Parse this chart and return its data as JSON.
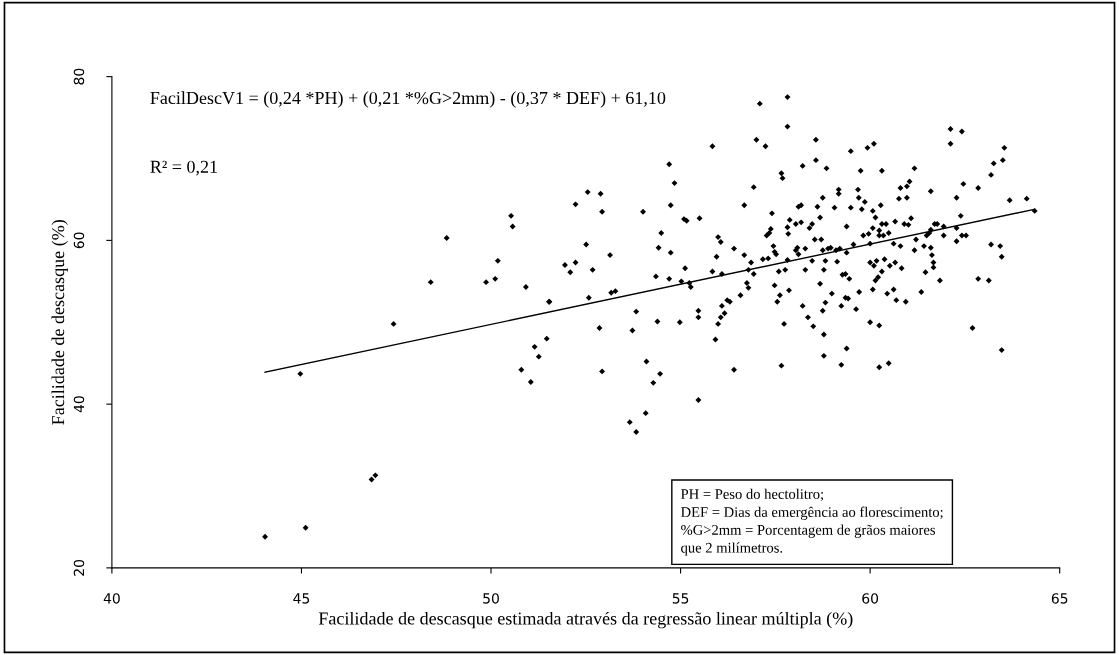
{
  "chart_data": {
    "type": "scatter",
    "xlabel": "Facilidade de descasque estimada através da regressão linear múltipla (%)",
    "ylabel": "Facilidade de descasque (%)",
    "annotations": [
      "FacilDescV1 = (0,24 *PH) + (0,21 *%G>2mm) - (0,37 * DEF) + 61,10",
      "R² = 0,21",
      "PH = Peso do hectolitro;\nDEF = Dias da emergência ao florescimento;\n%G>2mm = Porcentagem de grãos maiores\nque 2 milímetros."
    ],
    "xlim": [
      40,
      65
    ],
    "xticks": [
      40,
      45,
      50,
      55,
      60,
      65
    ],
    "ylim": [
      20,
      80
    ],
    "yticks": [
      20,
      40,
      60,
      80
    ],
    "grid": false,
    "legend": false,
    "series": [
      {
        "marker": "diamond",
        "color": "#000000",
        "x": [
          44.04,
          45.11,
          46.85,
          46.95,
          44.97,
          47.43,
          48.41,
          48.83,
          49.87,
          50.11,
          50.18,
          50.53,
          50.57,
          50.92,
          50.8,
          51.05,
          51.15,
          51.26,
          51.47,
          51.53,
          51.54,
          51.95,
          52.09,
          52.23,
          52.23,
          52.51,
          52.55,
          52.58,
          52.68,
          52.89,
          52.93,
          52.86,
          52.93,
          53.14,
          53.17,
          53.28,
          53.66,
          53.83,
          54.08,
          53.73,
          53.83,
          54.01,
          54.1,
          54.28,
          54.46,
          54.35,
          54.39,
          54.42,
          54.49,
          54.7,
          54.84,
          54.74,
          54.74,
          54.7,
          54.98,
          55.02,
          55.09,
          55.16,
          55.12,
          55.23,
          55.27,
          55.47,
          55.47,
          55.47,
          55.5,
          55.84,
          55.84,
          55.92,
          55.95,
          55.99,
          56.06,
          56.09,
          55.99,
          56.06,
          56.09,
          56.16,
          56.23,
          56.3,
          56.41,
          56.41,
          56.58,
          56.68,
          56.68,
          56.75,
          56.79,
          56.79,
          56.86,
          56.93,
          56.93,
          57.0,
          57.09,
          57.17,
          57.24,
          57.27,
          57.31,
          57.34,
          57.38,
          57.41,
          57.45,
          57.48,
          57.52,
          57.48,
          57.55,
          57.59,
          57.62,
          57.66,
          57.69,
          57.66,
          57.73,
          57.76,
          57.82,
          57.82,
          57.82,
          57.82,
          57.86,
          57.84,
          57.88,
          58.04,
          58.18,
          58.04,
          58.08,
          58.29,
          58.11,
          58.11,
          58.18,
          58.22,
          58.29,
          58.22,
          58.36,
          58.4,
          58.47,
          58.47,
          58.5,
          58.54,
          58.57,
          58.57,
          58.61,
          58.68,
          58.68,
          58.71,
          58.75,
          58.75,
          58.75,
          58.78,
          58.78,
          58.78,
          58.82,
          58.82,
          58.85,
          58.89,
          58.96,
          58.99,
          59.06,
          59.1,
          59.13,
          59.17,
          59.17,
          59.2,
          59.24,
          59.24,
          59.27,
          59.35,
          59.35,
          59.38,
          59.38,
          59.38,
          59.42,
          59.45,
          59.49,
          59.49,
          59.56,
          59.63,
          59.68,
          59.7,
          59.71,
          59.75,
          59.78,
          59.82,
          59.86,
          59.93,
          59.96,
          60.0,
          60.0,
          60.0,
          60.07,
          60.07,
          60.07,
          60.1,
          60.1,
          60.14,
          60.14,
          60.17,
          60.21,
          60.24,
          60.24,
          60.24,
          60.24,
          60.28,
          60.31,
          60.31,
          60.31,
          60.35,
          60.38,
          60.42,
          60.45,
          60.49,
          60.49,
          60.52,
          60.62,
          60.62,
          60.66,
          60.66,
          60.69,
          60.76,
          60.8,
          60.8,
          60.83,
          60.9,
          60.94,
          60.97,
          60.97,
          61.01,
          61.04,
          61.08,
          61.17,
          61.17,
          61.21,
          61.35,
          61.42,
          61.46,
          61.49,
          61.56,
          61.6,
          61.6,
          61.6,
          61.63,
          61.67,
          61.67,
          61.7,
          61.77,
          61.84,
          61.94,
          61.94,
          62.12,
          62.12,
          62.28,
          62.28,
          62.28,
          62.39,
          62.42,
          62.42,
          62.46,
          62.53,
          62.7,
          62.85,
          62.85,
          63.13,
          63.19,
          63.19,
          63.26,
          63.43,
          63.47,
          63.47,
          63.5,
          63.54,
          63.68,
          64.13,
          64.34
        ],
        "values": [
          23.8,
          24.9,
          30.8,
          31.3,
          43.7,
          49.8,
          54.9,
          60.3,
          54.9,
          55.3,
          57.5,
          63.0,
          61.7,
          54.3,
          44.2,
          42.7,
          47.0,
          45.8,
          48.0,
          52.5,
          52.5,
          57.0,
          56.1,
          57.3,
          64.4,
          59.5,
          65.9,
          53.0,
          56.4,
          65.7,
          63.5,
          49.3,
          44.0,
          58.2,
          53.6,
          53.8,
          37.8,
          36.6,
          38.9,
          49.0,
          51.3,
          63.5,
          45.2,
          42.6,
          43.7,
          55.6,
          50.1,
          59.1,
          60.9,
          69.3,
          67.0,
          64.3,
          58.5,
          55.3,
          50.0,
          55.0,
          62.6,
          62.4,
          56.6,
          54.8,
          54.3,
          51.4,
          50.6,
          40.5,
          62.7,
          71.5,
          56.2,
          47.9,
          58.0,
          60.4,
          59.8,
          55.9,
          49.8,
          50.6,
          52.0,
          51.1,
          52.7,
          52.5,
          59.0,
          44.2,
          53.3,
          64.3,
          58.2,
          54.8,
          56.4,
          54.2,
          57.3,
          55.9,
          66.5,
          72.3,
          76.7,
          57.7,
          71.5,
          60.6,
          57.8,
          60.9,
          61.4,
          63.3,
          59.3,
          58.6,
          58.3,
          54.5,
          52.5,
          56.2,
          53.3,
          68.2,
          67.6,
          44.7,
          49.8,
          56.4,
          77.5,
          73.9,
          61.6,
          57.6,
          53.9,
          60.8,
          62.5,
          62.0,
          62.2,
          58.8,
          59.1,
          59.0,
          58.3,
          64.1,
          64.3,
          69.1,
          56.4,
          52.0,
          50.6,
          61.5,
          62.0,
          57.5,
          49.5,
          60.1,
          72.3,
          69.8,
          64.1,
          62.8,
          54.7,
          60.1,
          65.2,
          58.8,
          51.4,
          56.4,
          48.5,
          45.9,
          57.5,
          52.4,
          68.8,
          59.0,
          59.1,
          53.5,
          64.0,
          58.8,
          57.4,
          66.2,
          65.7,
          59.0,
          52.0,
          44.8,
          55.8,
          55.9,
          53.0,
          46.8,
          61.7,
          58.5,
          52.9,
          55.3,
          70.9,
          64.0,
          59.5,
          51.6,
          66.2,
          65.2,
          53.7,
          68.5,
          63.8,
          60.6,
          64.7,
          71.3,
          60.8,
          59.6,
          50.0,
          57.3,
          63.6,
          61.5,
          54.0,
          71.8,
          56.9,
          62.8,
          55.1,
          57.5,
          55.5,
          49.6,
          61.2,
          60.6,
          44.5,
          64.3,
          68.5,
          62.0,
          56.2,
          60.6,
          57.7,
          62.0,
          53.5,
          60.9,
          45.0,
          56.9,
          59.6,
          54.0,
          62.3,
          57.3,
          52.7,
          65.1,
          66.4,
          59.3,
          56.6,
          62.0,
          52.5,
          66.6,
          65.2,
          61.9,
          67.2,
          62.7,
          68.8,
          58.8,
          60.1,
          53.7,
          59.3,
          56.1,
          60.6,
          60.9,
          66.0,
          59.1,
          61.3,
          58.2,
          57.3,
          56.7,
          62.0,
          62.0,
          55.1,
          61.7,
          60.6,
          73.6,
          71.8,
          65.2,
          61.5,
          59.9,
          63.0,
          73.3,
          60.6,
          66.9,
          60.6,
          49.3,
          66.4,
          55.3,
          55.1,
          68.0,
          59.5,
          69.4,
          59.3,
          58.0,
          46.6,
          69.8,
          71.3,
          64.9,
          65.1,
          63.6
        ]
      },
      {
        "type": "line",
        "marker": "none",
        "color": "#000000",
        "x": [
          44.04,
          64.34
        ],
        "values": [
          43.9,
          63.8
        ]
      }
    ]
  }
}
